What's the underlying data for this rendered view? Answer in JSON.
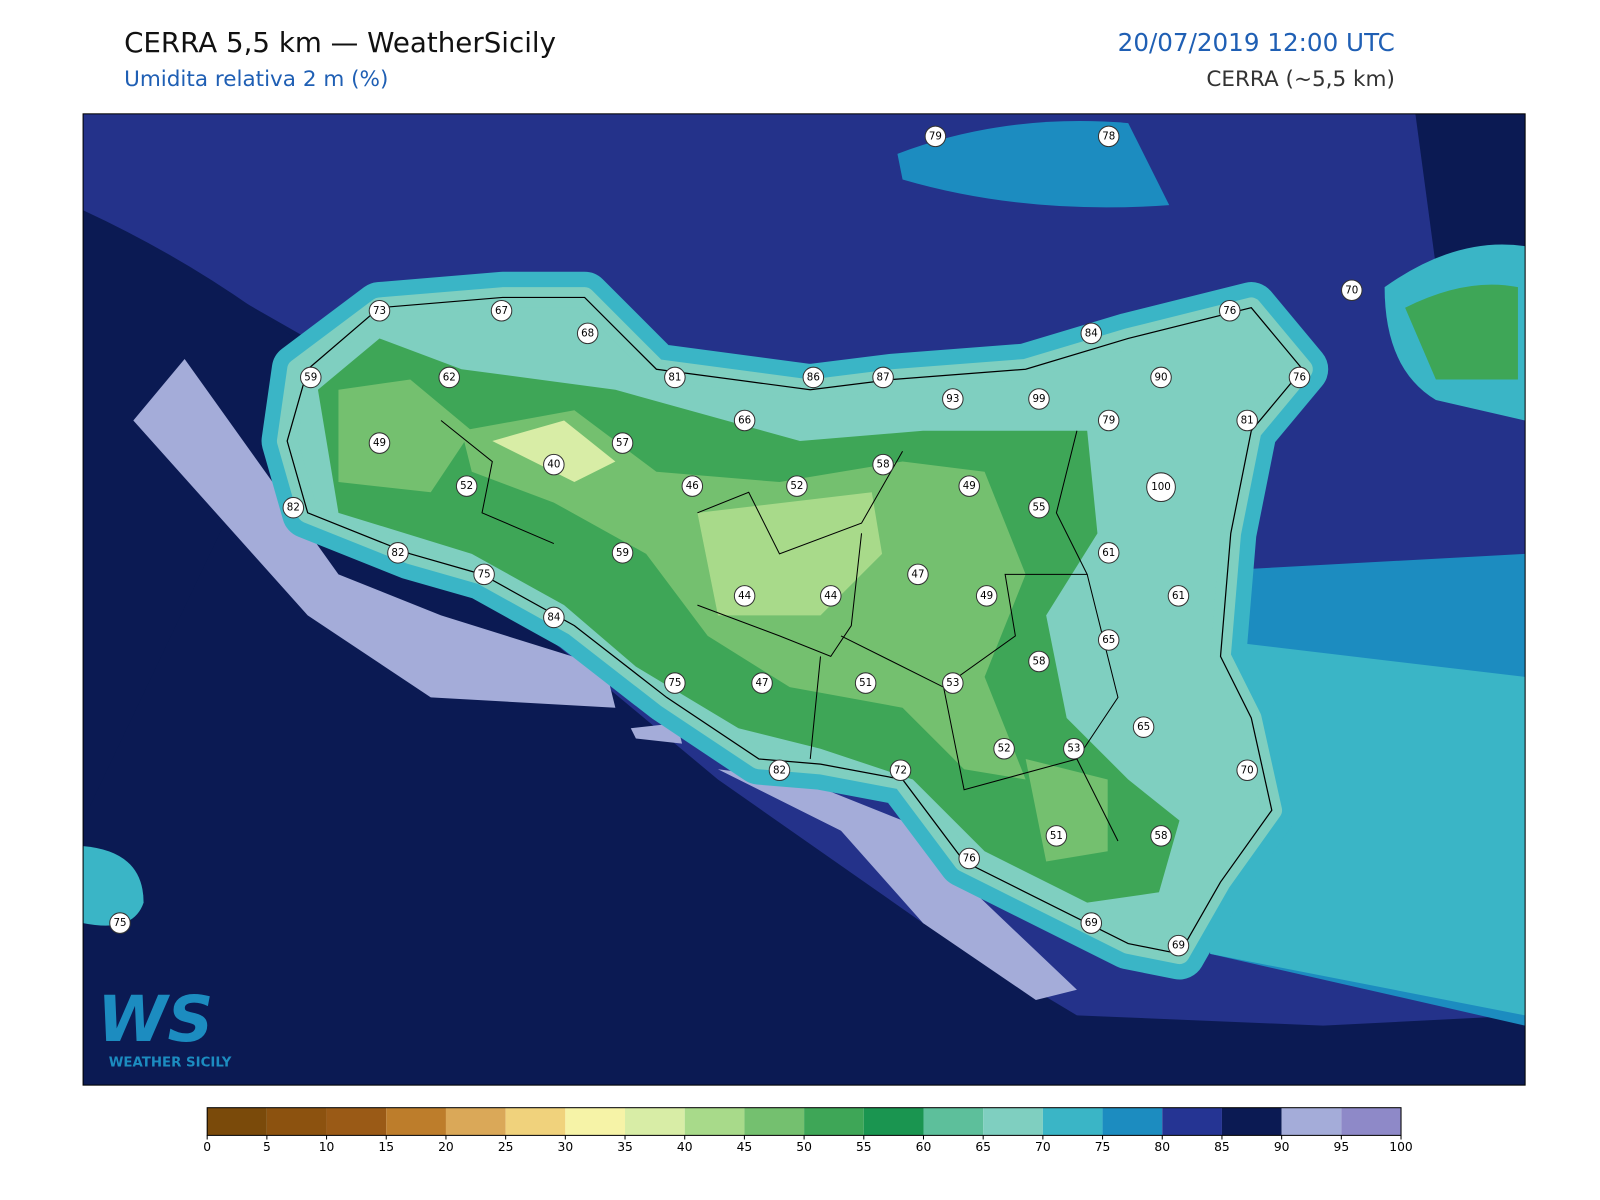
{
  "header": {
    "title": "CERRA 5,5 km — WeatherSicily",
    "subtitle": "Umidita relativa 2 m (%)",
    "datetime": "20/07/2019 12:00 UTC",
    "model": "CERRA (~5,5 km)"
  },
  "stations": [
    79,
    78,
    73,
    67,
    68,
    70,
    76,
    84,
    59,
    62,
    81,
    86,
    87,
    90,
    76,
    93,
    99,
    66,
    79,
    81,
    49,
    57,
    40,
    58,
    100,
    52,
    46,
    52,
    49,
    55,
    82,
    82,
    59,
    61,
    75,
    47,
    44,
    44,
    49,
    61,
    84,
    65,
    58,
    75,
    47,
    51,
    53,
    65,
    52,
    53,
    70,
    82,
    72,
    51,
    58,
    76,
    69,
    69,
    75
  ],
  "colorbar": {
    "ticks": [
      0,
      5,
      10,
      15,
      20,
      25,
      30,
      35,
      40,
      45,
      50,
      55,
      60,
      65,
      70,
      75,
      80,
      85,
      90,
      95,
      100
    ],
    "colors": [
      "#7a4a0a",
      "#8c520f",
      "#9a5a16",
      "#bd7d2b",
      "#daa858",
      "#f0d27c",
      "#f6f3a7",
      "#d8eda6",
      "#a8da8a",
      "#74c06f",
      "#3ea657",
      "#1a9550",
      "#5dbf9b",
      "#7fcfc0",
      "#3ab5c6",
      "#1c8cc0",
      "#253493",
      "#0b1a53",
      "#a4acd9",
      "#8e89c8"
    ]
  },
  "logo": {
    "mark": "WS",
    "text": "WEATHER SICILY"
  }
}
